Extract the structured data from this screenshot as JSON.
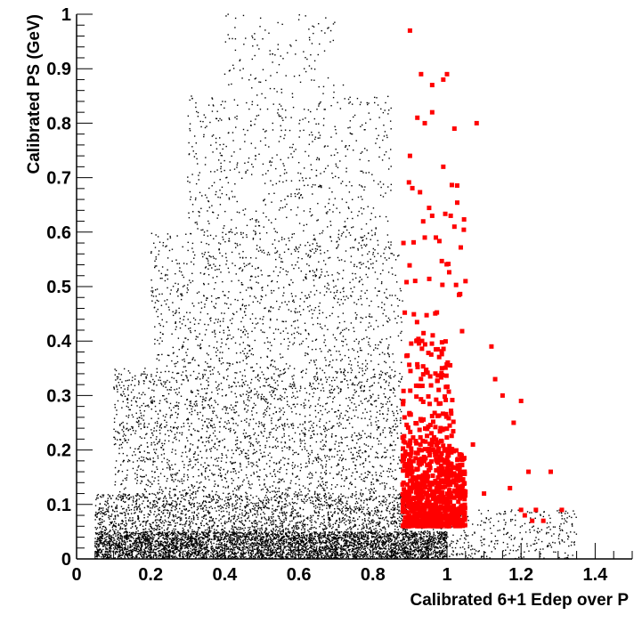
{
  "chart_data": {
    "type": "scatter",
    "title": "",
    "xlabel": "Calibrated 6+1 Edep over P",
    "ylabel": "Calibrated PS (GeV)",
    "xlim": [
      0,
      1.5
    ],
    "ylim": [
      0,
      1
    ],
    "x_ticks": [
      "0",
      "0.2",
      "0.4",
      "0.6",
      "0.8",
      "1",
      "1.2",
      "1.4"
    ],
    "y_ticks": [
      "0",
      "0.1",
      "0.2",
      "0.3",
      "0.4",
      "0.5",
      "0.6",
      "0.7",
      "0.8",
      "0.9",
      "1"
    ],
    "grid": false,
    "legend": "none",
    "series": [
      {
        "color": "#000000",
        "marker": "dot",
        "regions": [
          {
            "x": [
              0.05,
              1.0
            ],
            "y": [
              0.0,
              0.05
            ],
            "count": 4800
          },
          {
            "x": [
              0.05,
              0.9
            ],
            "y": [
              0.05,
              0.12
            ],
            "count": 1800
          },
          {
            "x": [
              0.1,
              0.88
            ],
            "y": [
              0.12,
              0.35
            ],
            "count": 2200
          },
          {
            "x": [
              0.2,
              0.88
            ],
            "y": [
              0.35,
              0.6
            ],
            "count": 1200
          },
          {
            "x": [
              0.3,
              0.85
            ],
            "y": [
              0.6,
              0.85
            ],
            "count": 600
          },
          {
            "x": [
              0.4,
              0.7
            ],
            "y": [
              0.85,
              1.0
            ],
            "count": 120
          },
          {
            "x": [
              0.9,
              1.35
            ],
            "y": [
              0.0,
              0.09
            ],
            "count": 400
          }
        ],
        "sample_points": [
          [
            0.1,
            0.02
          ],
          [
            0.3,
            0.03
          ],
          [
            0.5,
            0.04
          ],
          [
            0.45,
            0.9
          ],
          [
            0.6,
            0.99
          ],
          [
            0.72,
            0.87
          ],
          [
            1.25,
            0.05
          ],
          [
            1.32,
            0.07
          ]
        ]
      },
      {
        "color": "#ff0000",
        "marker": "square",
        "regions": [
          {
            "x": [
              0.88,
              1.05
            ],
            "y": [
              0.06,
              0.2
            ],
            "count": 650
          },
          {
            "x": [
              0.88,
              1.02
            ],
            "y": [
              0.2,
              0.4
            ],
            "count": 150
          },
          {
            "x": [
              0.88,
              1.05
            ],
            "y": [
              0.4,
              0.7
            ],
            "count": 40
          }
        ],
        "sample_points": [
          [
            0.9,
            0.97
          ],
          [
            0.93,
            0.89
          ],
          [
            0.96,
            0.87
          ],
          [
            1.0,
            0.89
          ],
          [
            0.99,
            0.88
          ],
          [
            0.92,
            0.81
          ],
          [
            0.94,
            0.8
          ],
          [
            0.96,
            0.82
          ],
          [
            1.02,
            0.79
          ],
          [
            1.08,
            0.8
          ],
          [
            0.9,
            0.74
          ],
          [
            0.99,
            0.72
          ],
          [
            0.96,
            0.63
          ],
          [
            1.01,
            0.63
          ],
          [
            1.02,
            0.61
          ],
          [
            0.97,
            0.59
          ],
          [
            0.94,
            0.59
          ],
          [
            1.05,
            0.51
          ],
          [
            1.12,
            0.39
          ],
          [
            1.2,
            0.29
          ],
          [
            1.18,
            0.25
          ],
          [
            1.22,
            0.16
          ],
          [
            1.28,
            0.16
          ],
          [
            1.31,
            0.09
          ],
          [
            1.24,
            0.09
          ],
          [
            1.21,
            0.08
          ],
          [
            1.17,
            0.13
          ],
          [
            1.1,
            0.12
          ],
          [
            1.07,
            0.21
          ],
          [
            1.15,
            0.3
          ],
          [
            1.13,
            0.33
          ],
          [
            1.26,
            0.07
          ],
          [
            1.23,
            0.07
          ],
          [
            1.2,
            0.09
          ]
        ]
      }
    ]
  }
}
